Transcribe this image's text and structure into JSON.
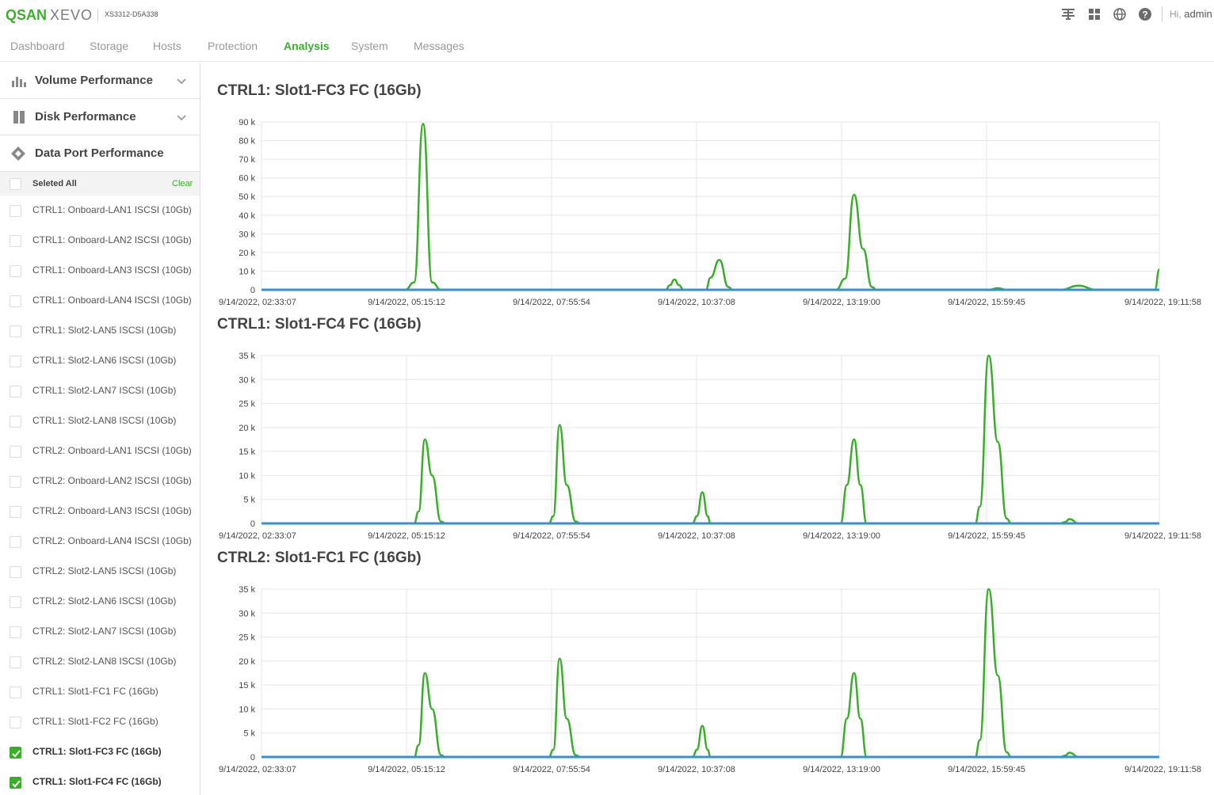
{
  "header": {
    "logo_qsan": "QSAN",
    "logo_xevo": "XEVO",
    "model": "XS3312-D5A338",
    "greeting": "Hi,",
    "user": "admin",
    "icons": [
      "network-icon",
      "apps-grid-icon",
      "globe-icon",
      "help-icon"
    ]
  },
  "nav": {
    "tabs": [
      {
        "label": "Dashboard",
        "active": false
      },
      {
        "label": "Storage",
        "active": false
      },
      {
        "label": "Hosts",
        "active": false
      },
      {
        "label": "Protection",
        "active": false
      },
      {
        "label": "Analysis",
        "active": true
      },
      {
        "label": "System",
        "active": false
      },
      {
        "label": "Messages",
        "active": false
      }
    ]
  },
  "sidebar": {
    "sections": [
      {
        "label": "Volume Performance",
        "icon": "bar-chart-icon",
        "expandable": true
      },
      {
        "label": "Disk Performance",
        "icon": "disk-icon",
        "expandable": true
      },
      {
        "label": "Data Port Performance",
        "icon": "data-port-icon",
        "expandable": false
      }
    ],
    "select_all_label": "Seleted All",
    "clear_label": "Clear",
    "ports": [
      {
        "label": "CTRL1: Onboard-LAN1 ISCSI (10Gb)",
        "checked": false
      },
      {
        "label": "CTRL1: Onboard-LAN2 ISCSI (10Gb)",
        "checked": false
      },
      {
        "label": "CTRL1: Onboard-LAN3 ISCSI (10Gb)",
        "checked": false
      },
      {
        "label": "CTRL1: Onboard-LAN4 ISCSI (10Gb)",
        "checked": false
      },
      {
        "label": "CTRL1: Slot2-LAN5 ISCSI (10Gb)",
        "checked": false
      },
      {
        "label": "CTRL1: Slot2-LAN6 ISCSI (10Gb)",
        "checked": false
      },
      {
        "label": "CTRL1: Slot2-LAN7 ISCSI (10Gb)",
        "checked": false
      },
      {
        "label": "CTRL1: Slot2-LAN8 ISCSI (10Gb)",
        "checked": false
      },
      {
        "label": "CTRL2: Onboard-LAN1 ISCSI (10Gb)",
        "checked": false
      },
      {
        "label": "CTRL2: Onboard-LAN2 ISCSI (10Gb)",
        "checked": false
      },
      {
        "label": "CTRL2: Onboard-LAN3 ISCSI (10Gb)",
        "checked": false
      },
      {
        "label": "CTRL2: Onboard-LAN4 ISCSI (10Gb)",
        "checked": false
      },
      {
        "label": "CTRL2: Slot2-LAN5 ISCSI (10Gb)",
        "checked": false
      },
      {
        "label": "CTRL2: Slot2-LAN6 ISCSI (10Gb)",
        "checked": false
      },
      {
        "label": "CTRL2: Slot2-LAN7 ISCSI (10Gb)",
        "checked": false
      },
      {
        "label": "CTRL2: Slot2-LAN8 ISCSI (10Gb)",
        "checked": false
      },
      {
        "label": "CTRL1: Slot1-FC1 FC (16Gb)",
        "checked": false
      },
      {
        "label": "CTRL1: Slot1-FC2 FC (16Gb)",
        "checked": false
      },
      {
        "label": "CTRL1: Slot1-FC3 FC (16Gb)",
        "checked": true
      },
      {
        "label": "CTRL1: Slot1-FC4 FC (16Gb)",
        "checked": true
      }
    ]
  },
  "colors": {
    "accent": "#3aae2a",
    "series_green": "#3aae2a",
    "series_blue": "#3a8fd1",
    "grid": "#e6e6e6"
  },
  "chart_data": [
    {
      "type": "line",
      "title": "CTRL1: Slot1-FC3 FC (16Gb)",
      "x_ticks": [
        "9/14/2022, 02:33:07",
        "9/14/2022, 05:15:12",
        "9/14/2022, 07:55:54",
        "9/14/2022, 10:37:08",
        "9/14/2022, 13:19:00",
        "9/14/2022, 15:59:45",
        "9/14/2022, 19:11:58"
      ],
      "y_ticks": [
        "0",
        "10 k",
        "20 k",
        "30 k",
        "40 k",
        "50 k",
        "60 k",
        "70 k",
        "80 k",
        "90 k"
      ],
      "ylim": [
        0,
        90000
      ],
      "grid": true,
      "series": [
        {
          "color": "green",
          "values": [
            [
              0,
              0
            ],
            [
              0.16,
              0
            ],
            [
              0.17,
              4000
            ],
            [
              0.18,
              89000
            ],
            [
              0.19,
              4000
            ],
            [
              0.2,
              0
            ],
            [
              0.45,
              0
            ],
            [
              0.455,
              2500
            ],
            [
              0.46,
              5500
            ],
            [
              0.465,
              2500
            ],
            [
              0.47,
              0
            ],
            [
              0.495,
              0
            ],
            [
              0.5,
              6500
            ],
            [
              0.51,
              16000
            ],
            [
              0.52,
              1500
            ],
            [
              0.525,
              0
            ],
            [
              0.64,
              0
            ],
            [
              0.65,
              6000
            ],
            [
              0.66,
              51000
            ],
            [
              0.67,
              22000
            ],
            [
              0.68,
              1500
            ],
            [
              0.685,
              0
            ],
            [
              0.81,
              0
            ],
            [
              0.82,
              900
            ],
            [
              0.83,
              0
            ],
            [
              0.89,
              0
            ],
            [
              0.91,
              2200
            ],
            [
              0.93,
              0
            ],
            [
              0.995,
              0
            ],
            [
              1.0,
              11000
            ]
          ]
        },
        {
          "color": "blue",
          "values": [
            [
              0,
              0
            ],
            [
              1.0,
              0
            ]
          ]
        }
      ]
    },
    {
      "type": "line",
      "title": "CTRL1: Slot1-FC4 FC (16Gb)",
      "x_ticks": [
        "9/14/2022, 02:33:07",
        "9/14/2022, 05:15:12",
        "9/14/2022, 07:55:54",
        "9/14/2022, 10:37:08",
        "9/14/2022, 13:19:00",
        "9/14/2022, 15:59:45",
        "9/14/2022, 19:11:58"
      ],
      "y_ticks": [
        "0",
        "5 k",
        "10 k",
        "15 k",
        "20 k",
        "25 k",
        "30 k",
        "35 k"
      ],
      "ylim": [
        0,
        35000
      ],
      "grid": true,
      "series": [
        {
          "color": "green",
          "values": [
            [
              0,
              0
            ],
            [
              0.17,
              0
            ],
            [
              0.175,
              2500
            ],
            [
              0.182,
              17500
            ],
            [
              0.19,
              10000
            ],
            [
              0.2,
              400
            ],
            [
              0.205,
              0
            ],
            [
              0.32,
              0
            ],
            [
              0.325,
              1500
            ],
            [
              0.332,
              20500
            ],
            [
              0.34,
              8000
            ],
            [
              0.35,
              400
            ],
            [
              0.355,
              0
            ],
            [
              0.48,
              0
            ],
            [
              0.485,
              1500
            ],
            [
              0.491,
              6500
            ],
            [
              0.497,
              1500
            ],
            [
              0.5,
              0
            ],
            [
              0.645,
              0
            ],
            [
              0.652,
              8000
            ],
            [
              0.66,
              17500
            ],
            [
              0.667,
              8000
            ],
            [
              0.674,
              0
            ],
            [
              0.795,
              0
            ],
            [
              0.8,
              3500
            ],
            [
              0.81,
              35000
            ],
            [
              0.82,
              17000
            ],
            [
              0.83,
              1000
            ],
            [
              0.835,
              0
            ],
            [
              0.89,
              0
            ],
            [
              0.895,
              300
            ],
            [
              0.9,
              900
            ],
            [
              0.91,
              0
            ],
            [
              1.0,
              0
            ]
          ]
        },
        {
          "color": "blue",
          "values": [
            [
              0,
              0
            ],
            [
              1.0,
              0
            ]
          ]
        }
      ]
    },
    {
      "type": "line",
      "title": "CTRL2: Slot1-FC1 FC (16Gb)",
      "x_ticks": [
        "9/14/2022, 02:33:07",
        "9/14/2022, 05:15:12",
        "9/14/2022, 07:55:54",
        "9/14/2022, 10:37:08",
        "9/14/2022, 13:19:00",
        "9/14/2022, 15:59:45",
        "9/14/2022, 19:11:58"
      ],
      "y_ticks": [
        "0",
        "5 k",
        "10 k",
        "15 k",
        "20 k",
        "25 k",
        "30 k",
        "35 k"
      ],
      "ylim": [
        0,
        35000
      ],
      "grid": true,
      "series": [
        {
          "color": "green",
          "values": [
            [
              0,
              0
            ],
            [
              0.17,
              0
            ],
            [
              0.175,
              2500
            ],
            [
              0.182,
              17500
            ],
            [
              0.19,
              10000
            ],
            [
              0.2,
              400
            ],
            [
              0.205,
              0
            ],
            [
              0.32,
              0
            ],
            [
              0.325,
              1500
            ],
            [
              0.332,
              20500
            ],
            [
              0.34,
              8000
            ],
            [
              0.35,
              400
            ],
            [
              0.355,
              0
            ],
            [
              0.48,
              0
            ],
            [
              0.485,
              1500
            ],
            [
              0.491,
              6500
            ],
            [
              0.497,
              1500
            ],
            [
              0.5,
              0
            ],
            [
              0.645,
              0
            ],
            [
              0.652,
              8000
            ],
            [
              0.66,
              17500
            ],
            [
              0.667,
              8000
            ],
            [
              0.674,
              0
            ],
            [
              0.795,
              0
            ],
            [
              0.8,
              3500
            ],
            [
              0.81,
              35000
            ],
            [
              0.82,
              17000
            ],
            [
              0.83,
              1000
            ],
            [
              0.835,
              0
            ],
            [
              0.89,
              0
            ],
            [
              0.895,
              300
            ],
            [
              0.9,
              900
            ],
            [
              0.91,
              0
            ],
            [
              1.0,
              0
            ]
          ]
        },
        {
          "color": "blue",
          "values": [
            [
              0,
              0
            ],
            [
              1.0,
              0
            ]
          ]
        }
      ]
    }
  ]
}
